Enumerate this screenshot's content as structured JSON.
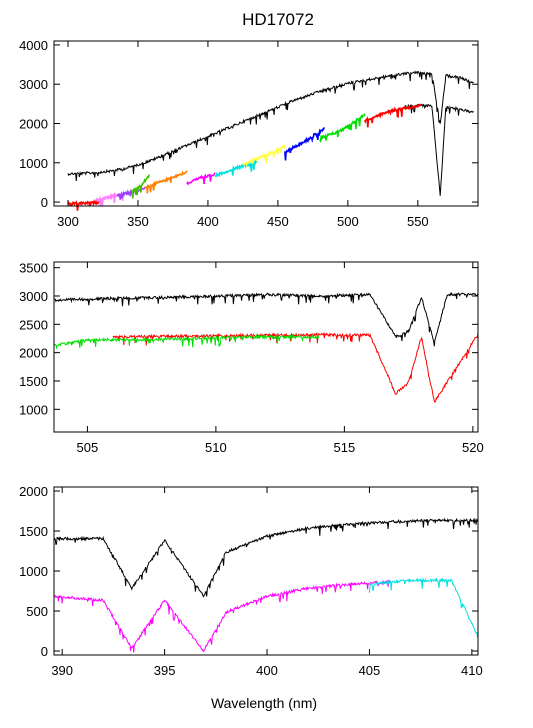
{
  "figure": {
    "title": "HD17072"
  },
  "chart_data": [
    {
      "type": "line",
      "panel": "top",
      "xlim": [
        290,
        593
      ],
      "ylim": [
        -100,
        4100
      ],
      "x_ticks": [
        300,
        350,
        400,
        450,
        500,
        550
      ],
      "y_ticks": [
        0,
        1000,
        2000,
        3000,
        4000
      ],
      "xlabel": "",
      "ylabel": "",
      "series": [
        {
          "color": "#000000",
          "x": [
            300,
            310,
            320,
            330,
            340,
            350,
            360,
            370,
            380,
            390,
            400,
            410,
            420,
            430,
            440,
            450,
            460,
            470,
            480,
            490,
            500,
            510,
            520,
            530,
            540,
            550,
            560,
            566,
            570,
            580,
            590
          ],
          "y": [
            750,
            760,
            780,
            820,
            880,
            980,
            1100,
            1250,
            1400,
            1550,
            1700,
            1850,
            2000,
            2150,
            2300,
            2450,
            2600,
            2720,
            2850,
            2950,
            3050,
            3120,
            3180,
            3250,
            3300,
            3330,
            3300,
            2000,
            3250,
            3200,
            3050
          ]
        },
        {
          "color": "#000000",
          "x": [
            540,
            550,
            560,
            566,
            570,
            580,
            590
          ],
          "y": [
            2450,
            2500,
            2480,
            200,
            2450,
            2400,
            2300
          ]
        },
        {
          "color": "#ff0000",
          "x": [
            300,
            310,
            320,
            325
          ],
          "y": [
            0,
            0,
            20,
            40
          ]
        },
        {
          "color": "#ff80ff",
          "x": [
            320,
            330,
            340
          ],
          "y": [
            80,
            160,
            250
          ]
        },
        {
          "color": "#a040ff",
          "x": [
            335,
            345,
            355
          ],
          "y": [
            200,
            280,
            380
          ]
        },
        {
          "color": "#40c000",
          "x": [
            345,
            352,
            358
          ],
          "y": [
            300,
            450,
            700
          ]
        },
        {
          "color": "#ff8000",
          "x": [
            355,
            370,
            385
          ],
          "y": [
            400,
            600,
            800
          ]
        },
        {
          "color": "#ff00ff",
          "x": [
            385,
            395,
            405
          ],
          "y": [
            500,
            650,
            750
          ]
        },
        {
          "color": "#00e0e0",
          "x": [
            405,
            420,
            435
          ],
          "y": [
            700,
            900,
            1050
          ]
        },
        {
          "color": "#ffff40",
          "x": [
            425,
            440,
            455
          ],
          "y": [
            1000,
            1200,
            1450
          ]
        },
        {
          "color": "#0000ff",
          "x": [
            455,
            470,
            483
          ],
          "y": [
            1300,
            1600,
            1900
          ]
        },
        {
          "color": "#00e000",
          "x": [
            480,
            495,
            512
          ],
          "y": [
            1650,
            1850,
            2250
          ]
        },
        {
          "color": "#ff0000",
          "x": [
            512,
            530,
            552
          ],
          "y": [
            2100,
            2350,
            2500
          ]
        }
      ]
    },
    {
      "type": "line",
      "panel": "middle",
      "xlim": [
        503.7,
        520.2
      ],
      "ylim": [
        600,
        3600
      ],
      "x_ticks": [
        505,
        510,
        515,
        520
      ],
      "y_ticks": [
        1000,
        1500,
        2000,
        2500,
        3000,
        3500
      ],
      "xlabel": "",
      "ylabel": "",
      "series": [
        {
          "color": "#000000",
          "x": [
            503.7,
            506,
            508,
            510,
            512,
            514,
            516,
            517,
            517.5,
            518,
            518.5,
            519,
            520.2
          ],
          "y": [
            2950,
            2980,
            3000,
            3020,
            3050,
            3020,
            3050,
            2300,
            2400,
            3000,
            2200,
            3050,
            3050
          ]
        },
        {
          "color": "#ff0000",
          "x": [
            506,
            510,
            514,
            516,
            517,
            517.5,
            518,
            518.5,
            520.2
          ],
          "y": [
            2300,
            2320,
            2340,
            2330,
            1300,
            1500,
            2300,
            1150,
            2350
          ]
        },
        {
          "color": "#00e000",
          "x": [
            503.7,
            505,
            507,
            509,
            511,
            513,
            514
          ],
          "y": [
            2150,
            2250,
            2250,
            2270,
            2300,
            2300,
            2300
          ]
        }
      ]
    },
    {
      "type": "line",
      "panel": "bottom",
      "xlim": [
        389.6,
        410.3
      ],
      "ylim": [
        -50,
        2050
      ],
      "x_ticks": [
        390,
        395,
        400,
        405,
        410
      ],
      "y_ticks": [
        0,
        500,
        1000,
        1500,
        2000
      ],
      "xlabel": "Wavelength (nm)",
      "ylabel": "",
      "series": [
        {
          "color": "#000000",
          "x": [
            389.6,
            392,
            393.4,
            395,
            396.9,
            398,
            400,
            402,
            404,
            406,
            408,
            410.3
          ],
          "y": [
            1420,
            1420,
            800,
            1400,
            700,
            1250,
            1450,
            1550,
            1600,
            1630,
            1650,
            1650
          ]
        },
        {
          "color": "#ff00ff",
          "x": [
            389.6,
            392,
            393.4,
            395,
            396.9,
            398,
            400,
            402,
            404,
            406
          ],
          "y": [
            700,
            650,
            50,
            650,
            20,
            500,
            700,
            800,
            850,
            880
          ]
        },
        {
          "color": "#00e0e0",
          "x": [
            405,
            407,
            409,
            410.3
          ],
          "y": [
            850,
            900,
            900,
            200
          ]
        }
      ]
    }
  ]
}
